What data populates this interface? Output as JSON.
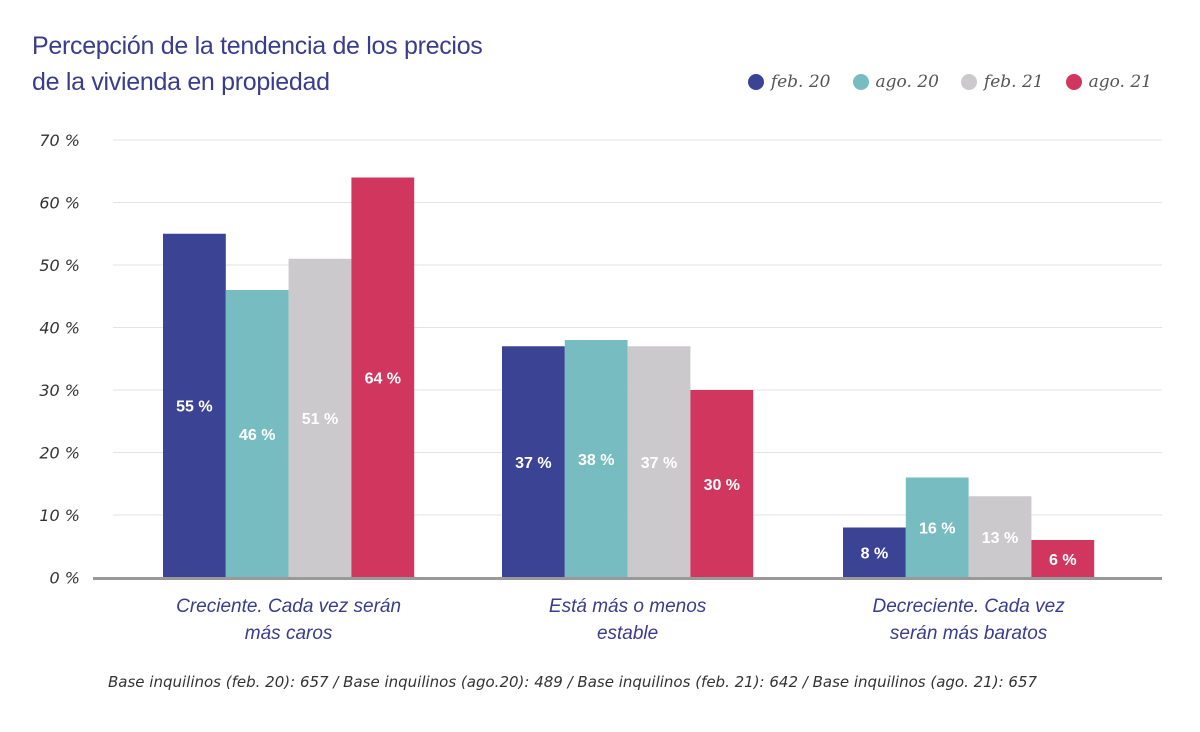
{
  "chart_data": {
    "type": "bar",
    "title": "Percepción de la tendencia de los precios de la vivienda en propiedad",
    "title_lines": [
      "Percepción de la tendencia de los precios",
      "de la vivienda en propiedad"
    ],
    "categories": [
      [
        "Creciente. Cada vez serán",
        "más caros"
      ],
      [
        "Está más o menos",
        "estable"
      ],
      [
        "Decreciente. Cada vez",
        "serán más baratos"
      ]
    ],
    "series": [
      {
        "name": "feb. 20",
        "color": "#3b4394",
        "values": [
          55,
          37,
          8
        ]
      },
      {
        "name": "ago. 20",
        "color": "#76bcc0",
        "values": [
          46,
          38,
          16
        ]
      },
      {
        "name": "feb. 21",
        "color": "#cbc9cb",
        "values": [
          51,
          37,
          13
        ]
      },
      {
        "name": "ago. 21",
        "color": "#d0365e",
        "values": [
          64,
          30,
          6
        ]
      }
    ],
    "ylim": [
      0,
      70
    ],
    "yticks": [
      0,
      10,
      20,
      30,
      40,
      50,
      60,
      70
    ],
    "ytick_suffix": " %",
    "grid": true,
    "legend_position": "top-right",
    "footnote": "Base inquilinos (feb. 20): 657 / Base inquilinos (ago.20): 489 / Base inquilinos (feb. 21): 642 / Base inquilinos (ago. 21): 657"
  }
}
